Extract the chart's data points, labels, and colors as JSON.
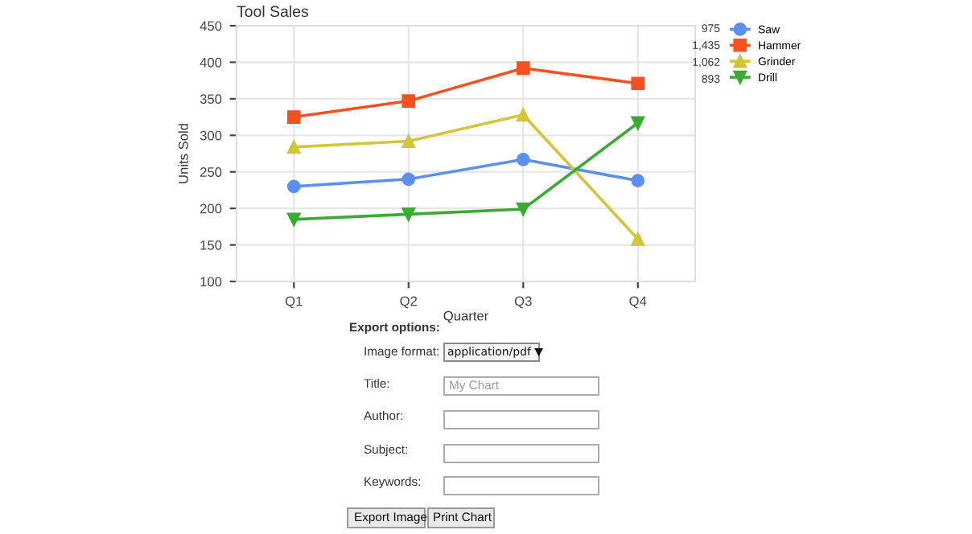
{
  "chart_data": {
    "type": "line",
    "title": "Tool Sales",
    "xlabel": "Quarter",
    "ylabel": "Units Sold",
    "categories": [
      "Q1",
      "Q2",
      "Q3",
      "Q4"
    ],
    "series": [
      {
        "name": "Saw",
        "color": "#5b8ff0",
        "marker": "circle",
        "values": [
          230,
          240,
          267,
          238
        ]
      },
      {
        "name": "Hammer",
        "color": "#f4511e",
        "marker": "square",
        "values": [
          325,
          347,
          392,
          371
        ]
      },
      {
        "name": "Grinder",
        "color": "#d4c43a",
        "marker": "triangle",
        "values": [
          284,
          292,
          328,
          158
        ]
      },
      {
        "name": "Drill",
        "color": "#3aaa35",
        "marker": "triangle_down",
        "values": [
          185,
          192,
          199,
          317
        ]
      }
    ],
    "ylim": [
      100,
      450
    ],
    "yticks": [
      100,
      150,
      200,
      250,
      300,
      350,
      400,
      450
    ],
    "grid": true,
    "legend": "top right",
    "line_style": "solid",
    "annotations": [
      "975",
      "1,435",
      "1,062",
      "893",
      "Export options:",
      "Image format:",
      "application/pdf ▼",
      "Title:",
      "My Chart",
      "Author:",
      "Subject:",
      "Keywords:",
      "Export Image",
      "Print Chart"
    ]
  }
}
